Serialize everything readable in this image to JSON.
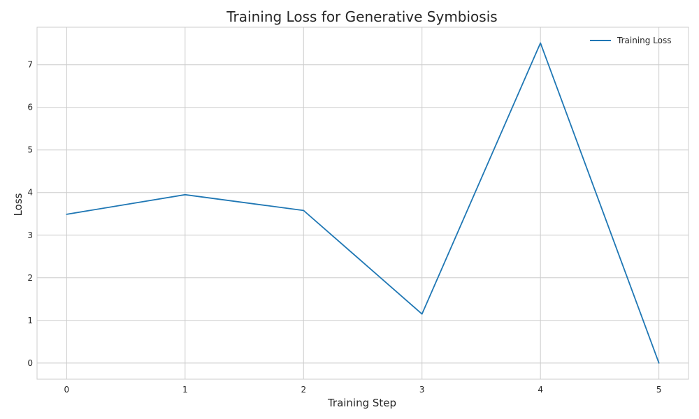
{
  "chart_data": {
    "type": "line",
    "title": "Training Loss for Generative Symbiosis",
    "xlabel": "Training Step",
    "ylabel": "Loss",
    "x": [
      0,
      1,
      2,
      3,
      4,
      5
    ],
    "x_ticks": [
      "0",
      "1",
      "2",
      "3",
      "4",
      "5"
    ],
    "y_ticks": [
      "0",
      "1",
      "2",
      "3",
      "4",
      "5",
      "6",
      "7"
    ],
    "xlim": [
      -0.25,
      5.25
    ],
    "ylim": [
      -0.38,
      7.88
    ],
    "grid": true,
    "legend_position": "top-right",
    "series": [
      {
        "name": "Training Loss",
        "color": "#1f77b4",
        "values": [
          3.49,
          3.95,
          3.58,
          1.15,
          7.51,
          0.0
        ]
      }
    ]
  }
}
